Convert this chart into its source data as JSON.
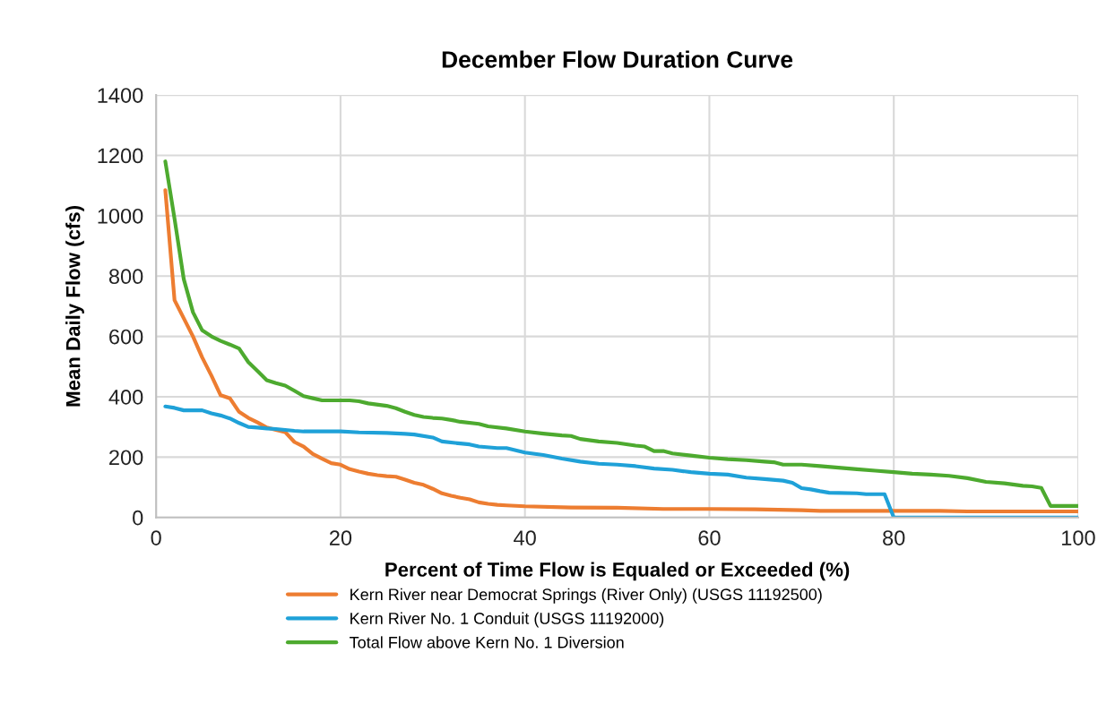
{
  "chart_data": {
    "type": "line",
    "title": "December Flow Duration Curve",
    "xlabel": "Percent of Time Flow is Equaled or Exceeded (%)",
    "ylabel": "Mean Daily Flow (cfs)",
    "xlim": [
      0,
      100
    ],
    "xticks": [
      0,
      20,
      40,
      60,
      80,
      100
    ],
    "ylim": [
      0,
      1400
    ],
    "yticks": [
      0,
      200,
      400,
      600,
      800,
      1000,
      1200,
      1400
    ],
    "grid": true,
    "legend": "bottom",
    "marker": "none",
    "line_style": "solid",
    "series": [
      {
        "name": "Kern River near Democrat Springs (River Only) (USGS 11192500)",
        "color": "#ed7d31",
        "x": [
          1,
          2,
          3,
          4,
          5,
          6,
          7,
          8,
          9,
          10,
          11,
          12,
          13,
          14,
          15,
          16,
          17,
          18,
          19,
          20,
          21,
          22,
          23,
          24,
          25,
          26,
          27,
          28,
          29,
          30,
          31,
          32,
          33,
          34,
          35,
          36,
          37,
          38,
          40,
          45,
          50,
          55,
          60,
          65,
          70,
          72,
          80,
          85,
          88,
          100
        ],
        "values": [
          1085,
          720,
          660,
          600,
          530,
          470,
          405,
          395,
          350,
          330,
          315,
          298,
          290,
          283,
          250,
          235,
          210,
          195,
          180,
          175,
          160,
          152,
          145,
          140,
          137,
          135,
          125,
          115,
          108,
          95,
          80,
          72,
          65,
          60,
          50,
          45,
          42,
          40,
          37,
          33,
          32,
          28,
          28,
          27,
          24,
          22,
          22,
          22,
          20,
          20
        ]
      },
      {
        "name": "Kern River No. 1 Conduit (USGS 11192000)",
        "color": "#1fa1d8",
        "x": [
          1,
          2,
          3,
          4,
          5,
          6,
          7,
          8,
          9,
          10,
          11,
          12,
          13,
          14,
          15,
          16,
          20,
          22,
          25,
          27,
          28,
          30,
          31,
          33,
          34,
          35,
          37,
          38,
          40,
          42,
          44,
          46,
          48,
          50,
          52,
          54,
          56,
          58,
          60,
          62,
          64,
          66,
          68,
          69,
          70,
          71,
          72,
          73,
          76,
          77,
          79,
          80,
          100
        ],
        "values": [
          368,
          363,
          355,
          355,
          355,
          345,
          338,
          328,
          313,
          300,
          298,
          295,
          293,
          290,
          287,
          285,
          285,
          282,
          280,
          277,
          275,
          265,
          252,
          245,
          242,
          235,
          230,
          230,
          215,
          207,
          195,
          185,
          178,
          175,
          170,
          162,
          158,
          150,
          145,
          142,
          132,
          127,
          122,
          115,
          97,
          93,
          87,
          82,
          80,
          77,
          77,
          0,
          0
        ]
      },
      {
        "name": "Total Flow above Kern No. 1 Diversion",
        "color": "#4daa2f",
        "x": [
          1,
          2,
          3,
          4,
          5,
          6,
          7,
          8,
          9,
          10,
          11,
          12,
          13,
          14,
          15,
          16,
          17,
          18,
          20,
          21,
          22,
          23,
          25,
          26,
          27,
          28,
          29,
          30,
          31,
          32,
          33,
          35,
          36,
          38,
          40,
          42,
          44,
          45,
          46,
          48,
          50,
          52,
          53,
          54,
          55,
          56,
          58,
          60,
          62,
          64,
          66,
          67,
          68,
          70,
          72,
          74,
          76,
          78,
          80,
          82,
          84,
          86,
          88,
          90,
          92,
          94,
          95,
          96,
          97,
          100
        ],
        "values": [
          1180,
          990,
          790,
          680,
          620,
          600,
          585,
          573,
          560,
          515,
          485,
          455,
          445,
          437,
          420,
          402,
          395,
          388,
          388,
          388,
          385,
          378,
          370,
          362,
          350,
          340,
          333,
          330,
          328,
          323,
          317,
          310,
          302,
          295,
          285,
          278,
          272,
          270,
          260,
          252,
          247,
          238,
          235,
          220,
          220,
          212,
          205,
          198,
          193,
          190,
          185,
          183,
          175,
          175,
          170,
          165,
          160,
          155,
          150,
          145,
          142,
          138,
          130,
          118,
          113,
          105,
          103,
          98,
          38,
          38
        ]
      }
    ]
  }
}
